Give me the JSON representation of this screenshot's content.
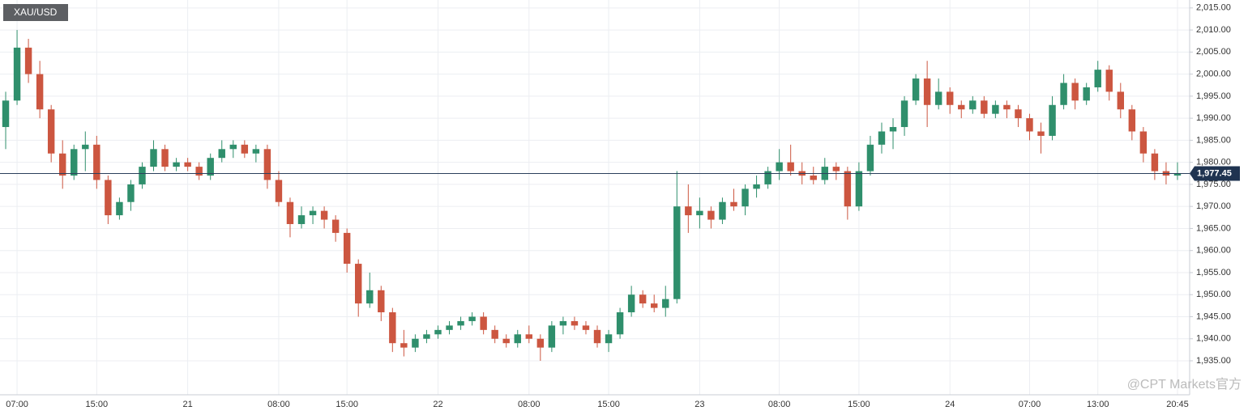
{
  "chart_data": {
    "type": "candlestick",
    "title": "XAU/USD",
    "categories": [
      null,
      "07:00",
      null,
      null,
      null,
      null,
      null,
      null,
      "15:00",
      null,
      null,
      null,
      null,
      null,
      null,
      null,
      "21",
      null,
      null,
      null,
      null,
      null,
      null,
      null,
      "08:00",
      null,
      null,
      null,
      null,
      null,
      "15:00",
      null,
      null,
      null,
      null,
      null,
      null,
      null,
      "22",
      null,
      null,
      null,
      null,
      null,
      null,
      null,
      "08:00",
      null,
      null,
      null,
      null,
      null,
      null,
      "15:00",
      null,
      null,
      null,
      null,
      null,
      null,
      null,
      "23",
      null,
      null,
      null,
      null,
      null,
      null,
      "08:00",
      null,
      null,
      null,
      null,
      null,
      null,
      "15:00",
      null,
      null,
      null,
      null,
      null,
      null,
      null,
      "24",
      null,
      null,
      null,
      null,
      null,
      null,
      "07:00",
      null,
      null,
      null,
      null,
      null,
      "13:00",
      null,
      null,
      null,
      null,
      null,
      null,
      "20:45"
    ],
    "open": [
      1988,
      1994,
      2006,
      2000,
      1992,
      1982,
      1977,
      1983,
      1984,
      1976,
      1968,
      1971,
      1975,
      1979,
      1983,
      1979,
      1980,
      1979,
      1977,
      1981,
      1983,
      1984,
      1982,
      1983,
      1976,
      1971,
      1966,
      1968,
      1969,
      1967,
      1964,
      1957,
      1948,
      1951,
      1946,
      1939,
      1938,
      1940,
      1941,
      1942,
      1943,
      1944,
      1945,
      1942,
      1940,
      1939,
      1941,
      1940,
      1938,
      1943,
      1944,
      1943,
      1942,
      1939,
      1941,
      1946,
      1950,
      1948,
      1947,
      1949,
      1970,
      1968,
      1969,
      1967,
      1971,
      1970,
      1974,
      1975,
      1978,
      1980,
      1978,
      1977,
      1976,
      1979,
      1978,
      1970,
      1978,
      1984,
      1987,
      1988,
      1994,
      1999,
      1993,
      1996,
      1993,
      1992,
      1994,
      1991,
      1993,
      1992,
      1990,
      1987,
      1986,
      1993,
      1998,
      1994,
      1997,
      2001,
      1996,
      1992,
      1987,
      1982,
      1978,
      1977
    ],
    "high": [
      1996,
      2010,
      2008,
      2003,
      1993,
      1985,
      1984,
      1987,
      1986,
      1977,
      1972,
      1976,
      1980,
      1985,
      1984,
      1981,
      1981,
      1980,
      1982,
      1985,
      1985,
      1985,
      1984,
      1984,
      1978,
      1972,
      1970,
      1970,
      1970,
      1968,
      1965,
      1958,
      1955,
      1952,
      1947,
      1942,
      1941,
      1942,
      1943,
      1944,
      1945,
      1946,
      1946,
      1943,
      1941,
      1942,
      1943,
      1941,
      1944,
      1945,
      1945,
      1944,
      1943,
      1942,
      1947,
      1952,
      1951,
      1950,
      1952,
      1978,
      1975,
      1972,
      1970,
      1972,
      1974,
      1975,
      1977,
      1979,
      1983,
      1984,
      1980,
      1979,
      1981,
      1980,
      1979,
      1980,
      1986,
      1989,
      1990,
      1995,
      2000,
      2003,
      1999,
      1997,
      1994,
      1995,
      1995,
      1994,
      1994,
      1993,
      1991,
      1989,
      1995,
      2000,
      1999,
      1998,
      2003,
      2002,
      1998,
      1993,
      1988,
      1983,
      1980,
      1980
    ],
    "low": [
      1983,
      1993,
      1998,
      1990,
      1980,
      1974,
      1976,
      1978,
      1974,
      1966,
      1967,
      1969,
      1974,
      1978,
      1978,
      1978,
      1978,
      1976,
      1976,
      1980,
      1981,
      1981,
      1980,
      1974,
      1970,
      1963,
      1965,
      1966,
      1965,
      1962,
      1955,
      1945,
      1947,
      1944,
      1937,
      1936,
      1937,
      1939,
      1940,
      1941,
      1942,
      1943,
      1941,
      1939,
      1938,
      1938,
      1939,
      1935,
      1937,
      1941,
      1942,
      1941,
      1938,
      1937,
      1940,
      1945,
      1947,
      1946,
      1945,
      1948,
      1964,
      1965,
      1965,
      1966,
      1969,
      1968,
      1972,
      1974,
      1976,
      1977,
      1975,
      1975,
      1975,
      1976,
      1967,
      1969,
      1977,
      1982,
      1983,
      1986,
      1993,
      1988,
      1992,
      1991,
      1990,
      1991,
      1990,
      1990,
      1990,
      1988,
      1985,
      1982,
      1985,
      1992,
      1992,
      1993,
      1996,
      1994,
      1990,
      1985,
      1980,
      1976,
      1975,
      1976
    ],
    "close": [
      1994,
      2006,
      2000,
      1992,
      1982,
      1977,
      1983,
      1984,
      1976,
      1968,
      1971,
      1975,
      1979,
      1983,
      1979,
      1980,
      1979,
      1977,
      1981,
      1983,
      1984,
      1982,
      1983,
      1976,
      1971,
      1966,
      1968,
      1969,
      1967,
      1964,
      1957,
      1948,
      1951,
      1946,
      1939,
      1938,
      1940,
      1941,
      1942,
      1943,
      1944,
      1945,
      1942,
      1940,
      1939,
      1941,
      1940,
      1938,
      1943,
      1944,
      1943,
      1942,
      1939,
      1941,
      1946,
      1950,
      1948,
      1947,
      1949,
      1970,
      1968,
      1969,
      1967,
      1971,
      1970,
      1974,
      1975,
      1978,
      1980,
      1978,
      1977,
      1976,
      1979,
      1978,
      1970,
      1978,
      1984,
      1987,
      1988,
      1994,
      1999,
      1993,
      1996,
      1993,
      1992,
      1994,
      1991,
      1993,
      1992,
      1990,
      1987,
      1986,
      1993,
      1998,
      1994,
      1997,
      2001,
      1996,
      1992,
      1987,
      1982,
      1978,
      1977,
      1977.45
    ],
    "up_color": "#2f8f6c",
    "down_color": "#cc5640",
    "ylim": [
      1927.3,
      2016.8
    ],
    "yticks": [
      {
        "value": 1935,
        "label": "1,935.00"
      },
      {
        "value": 1940,
        "label": "1,940.00"
      },
      {
        "value": 1945,
        "label": "1,945.00"
      },
      {
        "value": 1950,
        "label": "1,950.00"
      },
      {
        "value": 1955,
        "label": "1,955.00"
      },
      {
        "value": 1960,
        "label": "1,960.00"
      },
      {
        "value": 1965,
        "label": "1,965.00"
      },
      {
        "value": 1970,
        "label": "1,970.00"
      },
      {
        "value": 1975,
        "label": "1,975.00"
      },
      {
        "value": 1980,
        "label": "1,980.00"
      },
      {
        "value": 1985,
        "label": "1,985.00"
      },
      {
        "value": 1990,
        "label": "1,990.00"
      },
      {
        "value": 1995,
        "label": "1,995.00"
      },
      {
        "value": 2000,
        "label": "2,000.00"
      },
      {
        "value": 2005,
        "label": "2,005.00"
      },
      {
        "value": 2010,
        "label": "2,010.00"
      },
      {
        "value": 2015,
        "label": "2,015.00"
      }
    ],
    "last_price": {
      "value": 1977.45,
      "label": "1,977.45"
    },
    "grid": true,
    "watermark": "@CPT Markets官方"
  }
}
